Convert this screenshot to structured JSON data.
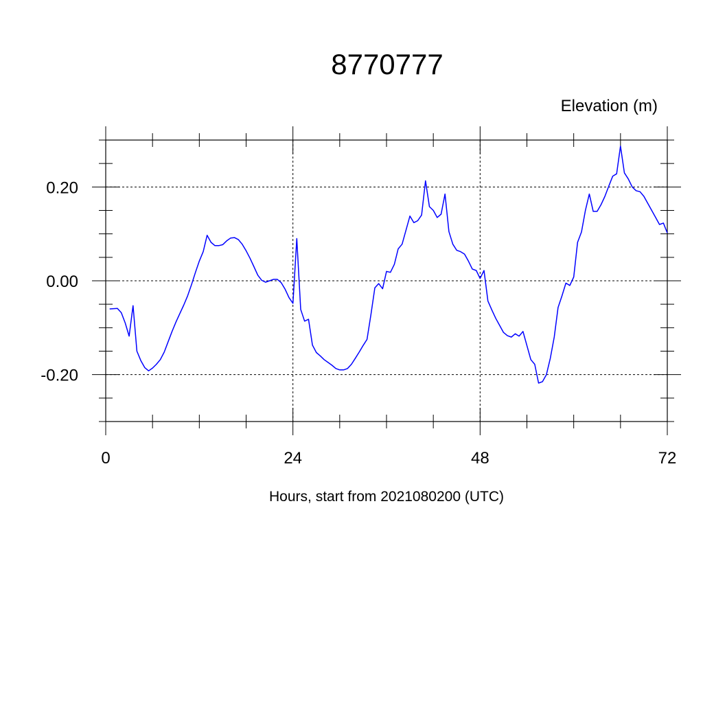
{
  "chart_data": {
    "type": "line",
    "title": "8770777",
    "units_label": "Elevation (m)",
    "xlabel": "Hours, start from 2021080200 (UTC)",
    "ylabel": "",
    "xlim": [
      0,
      72
    ],
    "ylim": [
      -0.3,
      0.3
    ],
    "x_ticks": [
      0,
      24,
      48,
      72
    ],
    "x_tick_labels": [
      "0",
      "24",
      "48",
      "72"
    ],
    "y_ticks": [
      -0.2,
      0.0,
      0.2
    ],
    "y_tick_labels": [
      "-0.20",
      "0.00",
      "0.20"
    ],
    "grid": "dashed at major ticks",
    "line_color": "#0000ff",
    "series": [
      {
        "x": [
          0.5,
          1.5,
          2.0,
          2.5,
          3.0,
          3.5,
          4.0,
          4.5,
          5.0,
          5.5,
          6.0,
          6.5,
          7.0,
          7.5,
          8.0,
          8.5,
          9.0,
          9.5,
          10.0,
          10.5,
          11.0,
          11.5,
          12.0,
          12.5,
          13.0,
          13.5,
          14.0,
          14.5,
          15.0,
          15.5,
          16.0,
          16.5,
          17.0,
          17.5,
          18.0,
          18.5,
          19.0,
          19.5,
          20.0,
          20.5,
          21.0,
          21.5,
          22.0,
          22.5,
          23.0,
          23.5,
          24.0,
          24.5,
          25.0,
          25.5,
          26.0,
          26.5,
          27.0,
          27.5,
          28.0,
          28.5,
          29.0,
          29.5,
          30.0,
          30.5,
          31.0,
          31.5,
          32.0,
          32.5,
          33.0,
          33.5,
          34.0,
          34.5,
          35.0,
          35.5,
          36.0,
          36.5,
          37.0,
          37.5,
          38.0,
          38.5,
          39.0,
          39.5,
          40.0,
          40.5,
          41.0,
          41.5,
          42.0,
          42.5,
          43.0,
          43.5,
          44.0,
          44.5,
          45.0,
          45.5,
          46.0,
          46.5,
          47.0,
          47.5,
          48.0,
          48.5,
          49.0,
          49.5,
          50.0,
          50.5,
          51.0,
          51.5,
          52.0,
          52.5,
          53.0,
          53.5,
          54.0,
          54.5,
          55.0,
          55.5,
          56.0,
          56.5,
          57.0,
          57.5,
          58.0,
          58.5,
          59.0,
          59.5,
          60.0,
          60.5,
          61.0,
          61.5,
          62.0,
          62.5,
          63.0,
          63.5,
          64.0,
          64.5,
          65.0,
          65.5,
          66.0,
          66.5,
          67.0,
          67.5,
          68.0,
          68.5,
          69.0,
          69.5,
          70.0,
          70.5,
          71.0,
          71.5,
          72.0
        ],
        "y": [
          -0.06,
          -0.059,
          -0.068,
          -0.09,
          -0.118,
          -0.053,
          -0.15,
          -0.17,
          -0.185,
          -0.192,
          -0.186,
          -0.178,
          -0.168,
          -0.152,
          -0.13,
          -0.108,
          -0.088,
          -0.07,
          -0.052,
          -0.032,
          -0.008,
          0.018,
          0.042,
          0.062,
          0.097,
          0.082,
          0.075,
          0.075,
          0.077,
          0.085,
          0.091,
          0.092,
          0.088,
          0.078,
          0.064,
          0.048,
          0.03,
          0.012,
          0.001,
          -0.003,
          0.0,
          0.003,
          0.003,
          -0.004,
          -0.018,
          -0.036,
          -0.048,
          0.09,
          -0.061,
          -0.086,
          -0.082,
          -0.137,
          -0.153,
          -0.16,
          -0.168,
          -0.174,
          -0.18,
          -0.187,
          -0.19,
          -0.19,
          -0.187,
          -0.178,
          -0.165,
          -0.152,
          -0.138,
          -0.125,
          -0.072,
          -0.015,
          -0.006,
          -0.017,
          0.02,
          0.018,
          0.035,
          0.068,
          0.078,
          0.108,
          0.138,
          0.124,
          0.128,
          0.14,
          0.213,
          0.158,
          0.15,
          0.135,
          0.142,
          0.185,
          0.105,
          0.078,
          0.065,
          0.062,
          0.057,
          0.042,
          0.025,
          0.022,
          0.005,
          0.022,
          -0.043,
          -0.062,
          -0.08,
          -0.095,
          -0.11,
          -0.117,
          -0.12,
          -0.113,
          -0.118,
          -0.108,
          -0.138,
          -0.168,
          -0.178,
          -0.218,
          -0.215,
          -0.2,
          -0.165,
          -0.12,
          -0.057,
          -0.032,
          -0.005,
          -0.01,
          0.008,
          0.082,
          0.104,
          0.15,
          0.185,
          0.148,
          0.148,
          0.162,
          0.18,
          0.202,
          0.223,
          0.228,
          0.287,
          0.23,
          0.217,
          0.2,
          0.192,
          0.19,
          0.18,
          0.165,
          0.15,
          0.135,
          0.12,
          0.123,
          0.102
        ]
      }
    ]
  }
}
